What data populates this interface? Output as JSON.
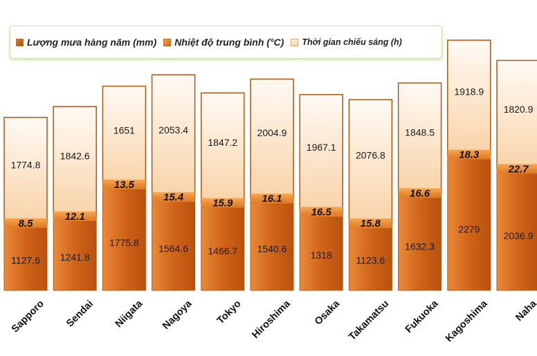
{
  "legend": {
    "rain": "Lượng mưa hàng năm (mm)",
    "temp": "Nhiệt độ trung bình (°C)",
    "sun": "Thời gian chiếu sáng (h)"
  },
  "colors": {
    "rain": "#d2691e",
    "temp": "#ef9a45",
    "sun": "#fbe3c8",
    "legend_border": "#c9e3a6"
  },
  "chart_data": {
    "type": "bar",
    "stacked": true,
    "categories": [
      "Sapporo",
      "Sendai",
      "Niigata",
      "Nagoya",
      "Tokyo",
      "Hiroshima",
      "Osaka",
      "Takamatsu",
      "Fukuoka",
      "Kagoshima",
      "Naha"
    ],
    "series": [
      {
        "name": "Lượng mưa hàng năm (mm)",
        "values": [
          1127.6,
          1241.8,
          1775.8,
          1564.6,
          1466.7,
          1540.6,
          1318,
          1123.6,
          1632.3,
          2279,
          2036.9
        ]
      },
      {
        "name": "Nhiệt độ trung bình (°C)",
        "values": [
          8.5,
          12.1,
          13.5,
          15.4,
          15.9,
          16.1,
          16.5,
          15.8,
          16.6,
          18.3,
          22.7
        ]
      },
      {
        "name": "Thời gian chiếu sáng (h)",
        "values": [
          1774.8,
          1842.6,
          1651,
          2053.4,
          1847.2,
          2004.9,
          1967.1,
          2076.8,
          1848.5,
          1918.9,
          1820.9
        ]
      }
    ],
    "value_labels": {
      "rain": [
        "1127.6",
        "1241.8",
        "1775.8",
        "1564.6",
        "1466.7",
        "1540.6",
        "1318",
        "1123.6",
        "1632.3",
        "2279",
        "2036.9"
      ],
      "temp": [
        "8.5",
        "12.1",
        "13.5",
        "15.4",
        "15.9",
        "16.1",
        "16.5",
        "15.8",
        "16.6",
        "18.3",
        "22.7"
      ],
      "sun": [
        "1774.8",
        "1842.6",
        "1651",
        "2053.4",
        "1847.2",
        "2004.9",
        "1967.1",
        "2076.8",
        "1848.5",
        "1918.9",
        "1820.9"
      ]
    },
    "legend_position": "top",
    "grid": false,
    "axis_visible": false
  }
}
